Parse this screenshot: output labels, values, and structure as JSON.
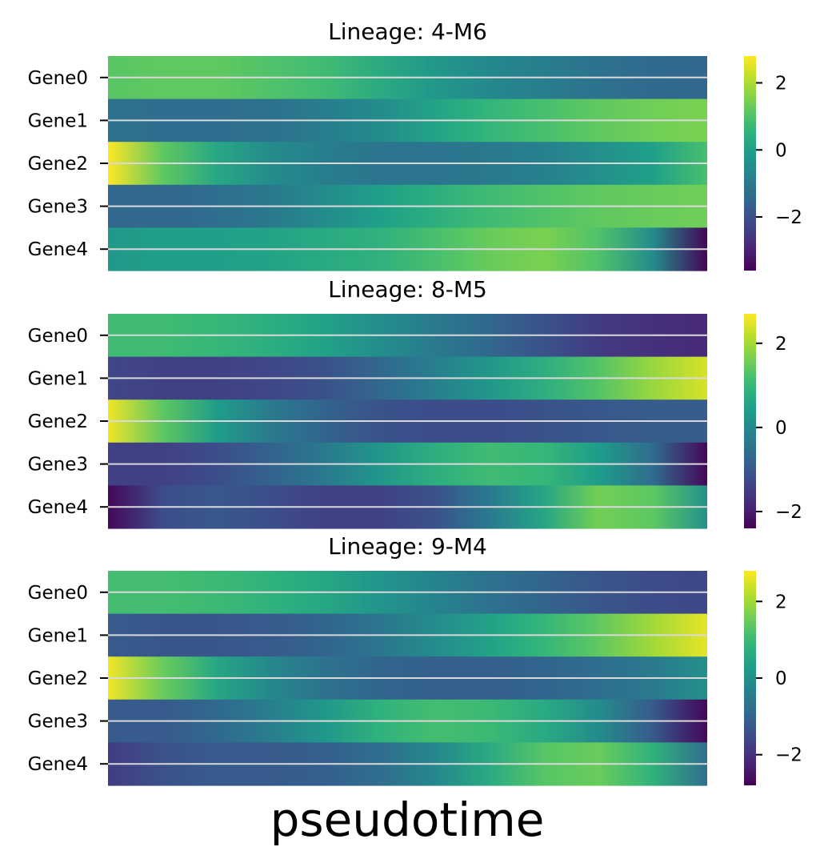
{
  "chart_data": [
    {
      "type": "heatmap",
      "title": "Lineage: 4-M6",
      "rows": [
        "Gene0",
        "Gene1",
        "Gene2",
        "Gene3",
        "Gene4"
      ],
      "x_samples": 12,
      "values": [
        [
          1.1,
          1.2,
          1.2,
          1.0,
          0.8,
          0.3,
          -0.2,
          -0.6,
          -0.9,
          -1.2,
          -1.4,
          -1.5
        ],
        [
          -1.2,
          -1.3,
          -1.3,
          -1.2,
          -0.9,
          -0.5,
          0.1,
          0.6,
          0.9,
          1.2,
          1.4,
          1.5
        ],
        [
          2.8,
          1.2,
          0.2,
          -0.5,
          -0.9,
          -1.1,
          -1.1,
          -1.0,
          -0.8,
          -0.4,
          0.0,
          0.9
        ],
        [
          -1.5,
          -1.5,
          -1.3,
          -1.0,
          -0.5,
          0.0,
          0.4,
          0.8,
          1.0,
          1.2,
          1.3,
          1.4
        ],
        [
          -0.2,
          0.0,
          0.0,
          0.1,
          0.3,
          0.5,
          0.9,
          1.3,
          1.5,
          1.0,
          -0.5,
          -3.5
        ]
      ],
      "colorbar": {
        "min": -3.6,
        "max": 2.8,
        "ticks": [
          2,
          0,
          -2
        ],
        "tick_labels": [
          "2",
          "0",
          "−2"
        ]
      }
    },
    {
      "type": "heatmap",
      "title": "Lineage: 8-M5",
      "rows": [
        "Gene0",
        "Gene1",
        "Gene2",
        "Gene3",
        "Gene4"
      ],
      "x_samples": 12,
      "values": [
        [
          1.1,
          1.1,
          1.0,
          0.8,
          0.5,
          0.1,
          -0.3,
          -0.7,
          -1.1,
          -1.5,
          -1.7,
          -1.8
        ],
        [
          -1.3,
          -1.4,
          -1.4,
          -1.3,
          -1.1,
          -0.7,
          -0.2,
          0.3,
          0.8,
          1.3,
          1.9,
          2.4
        ],
        [
          2.6,
          1.4,
          0.4,
          -0.3,
          -0.8,
          -1.1,
          -1.2,
          -1.2,
          -1.1,
          -1.0,
          -0.9,
          -0.9
        ],
        [
          -1.4,
          -1.4,
          -1.2,
          -0.8,
          -0.3,
          0.3,
          0.8,
          1.1,
          1.0,
          0.4,
          -0.6,
          -2.3
        ],
        [
          -2.3,
          -1.2,
          -1.0,
          -1.2,
          -1.4,
          -1.4,
          -1.1,
          -0.3,
          0.6,
          1.6,
          1.4,
          0.2
        ]
      ],
      "colorbar": {
        "min": -2.4,
        "max": 2.7,
        "ticks": [
          2,
          0,
          -2
        ],
        "tick_labels": [
          "2",
          "0",
          "−2"
        ]
      }
    },
    {
      "type": "heatmap",
      "title": "Lineage: 9-M4",
      "rows": [
        "Gene0",
        "Gene1",
        "Gene2",
        "Gene3",
        "Gene4"
      ],
      "x_samples": 12,
      "values": [
        [
          1.1,
          1.1,
          1.0,
          0.8,
          0.5,
          0.1,
          -0.3,
          -0.7,
          -1.0,
          -1.3,
          -1.5,
          -1.6
        ],
        [
          -1.2,
          -1.3,
          -1.3,
          -1.2,
          -1.0,
          -0.6,
          -0.1,
          0.4,
          0.9,
          1.4,
          2.0,
          2.6
        ],
        [
          2.7,
          1.5,
          0.5,
          -0.2,
          -0.7,
          -1.0,
          -1.1,
          -1.1,
          -1.0,
          -0.8,
          -0.5,
          0.0
        ],
        [
          -1.2,
          -1.2,
          -0.9,
          -0.4,
          0.2,
          0.8,
          1.1,
          1.0,
          0.6,
          -0.1,
          -1.2,
          -2.7
        ],
        [
          -1.8,
          -1.4,
          -1.2,
          -1.2,
          -1.1,
          -0.8,
          -0.2,
          0.6,
          1.3,
          1.5,
          0.8,
          -0.8
        ]
      ],
      "colorbar": {
        "min": -2.8,
        "max": 2.8,
        "ticks": [
          2,
          0,
          -2
        ],
        "tick_labels": [
          "2",
          "0",
          "−2"
        ]
      }
    }
  ],
  "xlabel": "pseudotime",
  "colormap": "viridis",
  "row_separator_color": "#d9d9d9"
}
